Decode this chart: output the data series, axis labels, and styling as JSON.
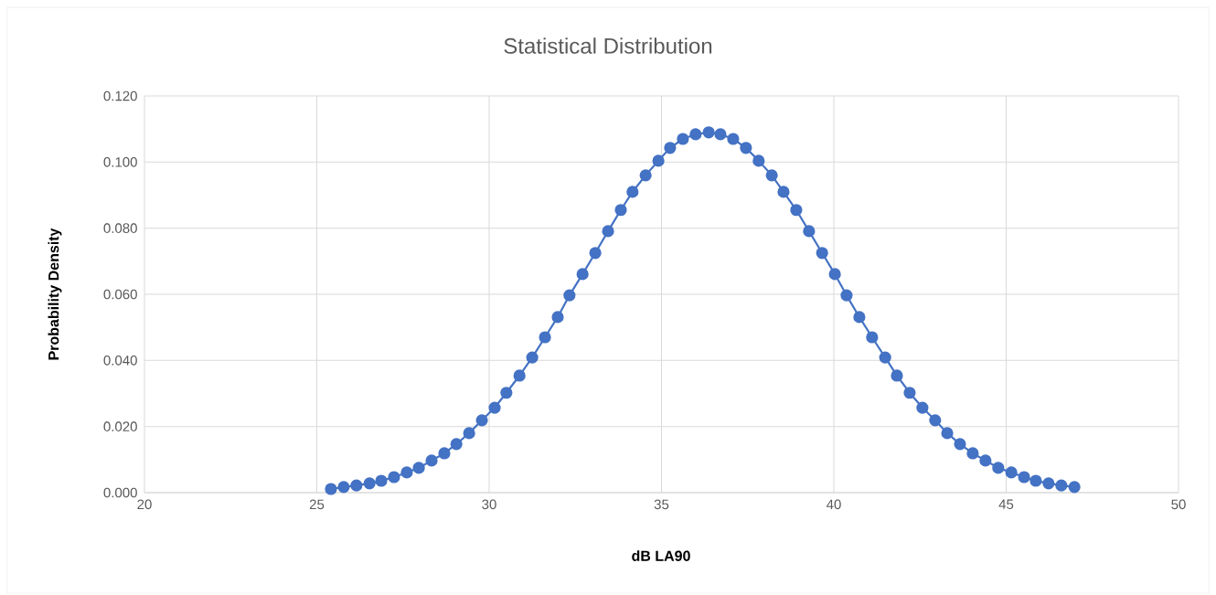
{
  "chart_data": {
    "type": "line",
    "title": "Statistical Distribution",
    "xlabel": "dB LA90",
    "ylabel": "Probability Density",
    "series": [
      {
        "color": "#4472c4",
        "x": [
          25.41,
          25.78,
          26.15,
          26.53,
          26.87,
          27.24,
          27.61,
          27.96,
          28.33,
          28.7,
          29.05,
          29.42,
          29.79,
          30.16,
          30.5,
          30.88,
          31.25,
          31.62,
          31.99,
          32.33,
          32.71,
          33.08,
          33.45,
          33.82,
          34.16,
          34.54,
          34.91,
          35.25,
          35.62,
          35.99,
          36.37,
          36.71,
          37.08,
          37.45,
          37.82,
          38.2,
          38.54,
          38.91,
          39.28,
          39.66,
          40.03,
          40.37,
          40.74,
          41.11,
          41.49,
          41.83,
          42.2,
          42.57,
          42.94,
          43.29,
          43.66,
          44.03,
          44.4,
          44.77,
          45.15,
          45.52,
          45.86,
          46.23,
          46.6,
          46.98
        ],
        "values": [
          0.0011,
          0.0017,
          0.0022,
          0.0028,
          0.0036,
          0.0047,
          0.0061,
          0.0075,
          0.0097,
          0.0119,
          0.0147,
          0.018,
          0.0219,
          0.0257,
          0.0302,
          0.0354,
          0.0409,
          0.047,
          0.0531,
          0.0597,
          0.0661,
          0.0725,
          0.0791,
          0.0855,
          0.091,
          0.096,
          0.1004,
          0.1043,
          0.107,
          0.1084,
          0.109,
          0.1084,
          0.107,
          0.1043,
          0.1004,
          0.096,
          0.091,
          0.0855,
          0.0791,
          0.0725,
          0.0661,
          0.0597,
          0.0531,
          0.047,
          0.0409,
          0.0354,
          0.0302,
          0.0257,
          0.0219,
          0.018,
          0.0147,
          0.0119,
          0.0097,
          0.0075,
          0.0061,
          0.0047,
          0.0036,
          0.0028,
          0.0022,
          0.0017
        ]
      }
    ],
    "xlim": [
      20,
      50
    ],
    "xticks": [
      20,
      25,
      30,
      35,
      40,
      45,
      50
    ],
    "ylim": [
      0,
      0.12
    ],
    "yticks": [
      {
        "value": 0,
        "label": "0.000"
      },
      {
        "value": 0.02,
        "label": "0.020"
      },
      {
        "value": 0.04,
        "label": "0.040"
      },
      {
        "value": 0.06,
        "label": "0.060"
      },
      {
        "value": 0.08,
        "label": "0.080"
      },
      {
        "value": 0.1,
        "label": "0.100"
      },
      {
        "value": 0.12,
        "label": "0.120"
      }
    ],
    "grid": true,
    "marker": "circle",
    "line_style": "solid"
  }
}
